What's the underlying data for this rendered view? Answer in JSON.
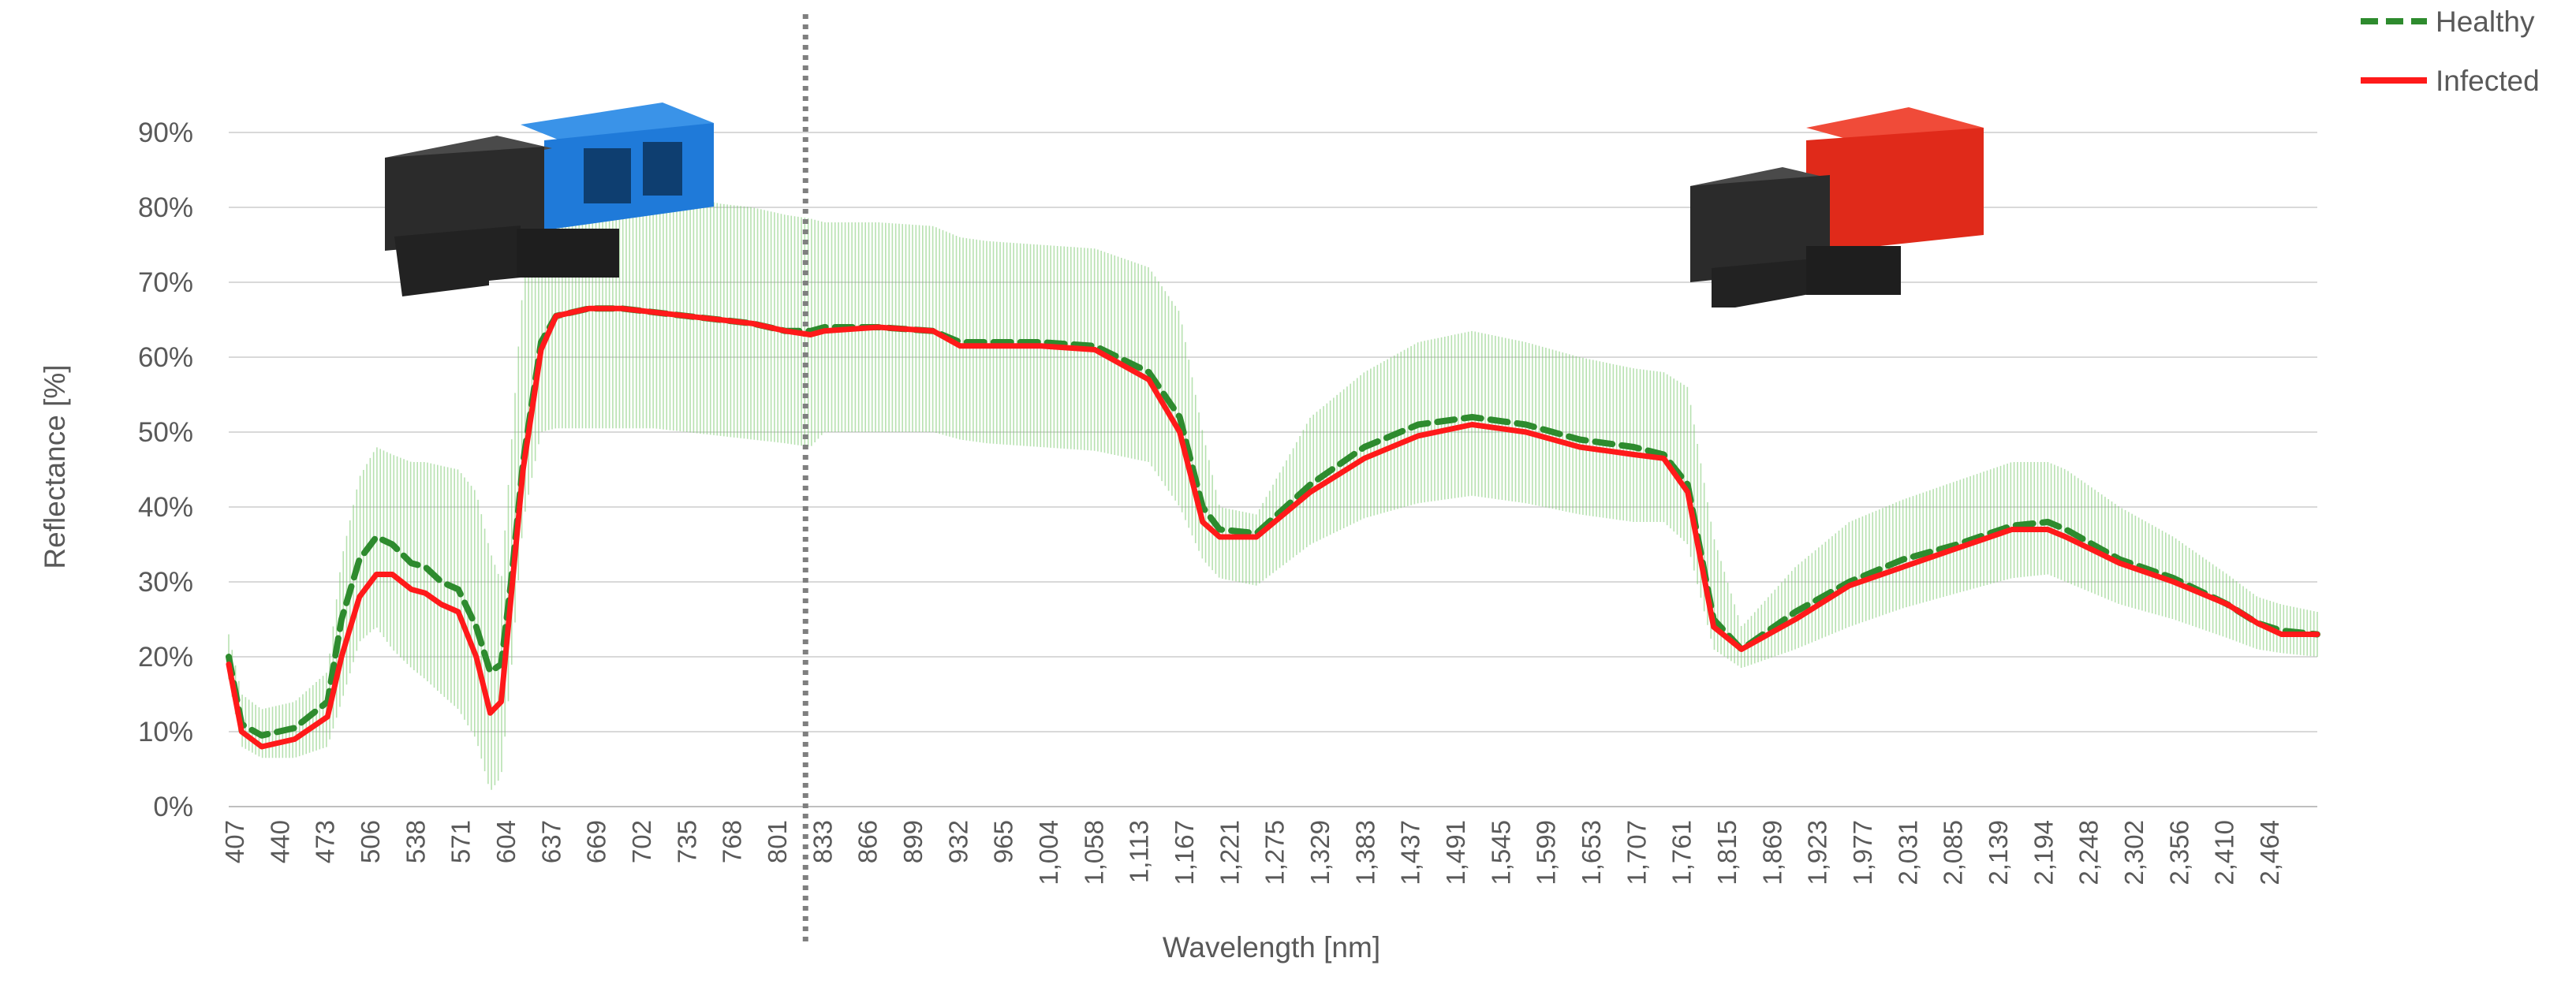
{
  "chart_data": {
    "type": "line",
    "title": "",
    "xlabel": "Wavelength [nm]",
    "ylabel": "Reflectance [%]",
    "x_unit": "nm",
    "xlim": [
      407,
      2500
    ],
    "ylim": [
      0,
      90
    ],
    "y_ticks": [
      "0%",
      "10%",
      "20%",
      "30%",
      "40%",
      "50%",
      "60%",
      "70%",
      "80%",
      "90%"
    ],
    "x_tick_labels": [
      "407",
      "440",
      "473",
      "506",
      "538",
      "571",
      "604",
      "637",
      "669",
      "702",
      "735",
      "768",
      "801",
      "833",
      "866",
      "899",
      "932",
      "965",
      "1,004",
      "1,058",
      "1,113",
      "1,167",
      "1,221",
      "1,275",
      "1,329",
      "1,383",
      "1,437",
      "1,491",
      "1,545",
      "1,599",
      "1,653",
      "1,707",
      "1,761",
      "1,815",
      "1,869",
      "1,923",
      "1,977",
      "2,031",
      "2,085",
      "2,139",
      "2,194",
      "2,248",
      "2,302",
      "2,356",
      "2,410",
      "2,464"
    ],
    "grid": true,
    "legend_position": "top-right",
    "divider_x": 985,
    "series": [
      {
        "name": "Healthy",
        "color": "#2E8B2E",
        "dash": "dashed",
        "x": [
          407,
          420,
          440,
          473,
          506,
          520,
          538,
          555,
          571,
          590,
          604,
          620,
          637,
          655,
          669,
          680,
          690,
          702,
          720,
          735,
          768,
          801,
          833,
          866,
          899,
          932,
          965,
          990,
          1004,
          1058,
          1113,
          1140,
          1167,
          1221,
          1275,
          1329,
          1360,
          1383,
          1400,
          1437,
          1491,
          1545,
          1599,
          1653,
          1707,
          1761,
          1815,
          1845,
          1869,
          1895,
          1923,
          1977,
          2031,
          2085,
          2139,
          2194,
          2230,
          2248,
          2302,
          2356,
          2410,
          2440,
          2464,
          2500
        ],
        "values": [
          20,
          11,
          9.5,
          10.5,
          14,
          25,
          33,
          36,
          35,
          32.5,
          32,
          30,
          29,
          24,
          18,
          19,
          30,
          46,
          62,
          65.5,
          66.5,
          66.5,
          66,
          65.5,
          65,
          64.5,
          63.5,
          63.5,
          64,
          64,
          63.5,
          62,
          62,
          62,
          61.5,
          58,
          52,
          40,
          37,
          36.5,
          43,
          48,
          51,
          52,
          51,
          49,
          48,
          47,
          43,
          25,
          21,
          26,
          30,
          33,
          35,
          37.5,
          38,
          37,
          33,
          30.5,
          27,
          24.5,
          23.5,
          23
        ]
      },
      {
        "name": "Infected",
        "color": "#FF1A1A",
        "dash": "solid",
        "x": [
          407,
          420,
          440,
          473,
          506,
          520,
          538,
          555,
          571,
          590,
          604,
          620,
          637,
          655,
          669,
          680,
          690,
          702,
          720,
          735,
          768,
          801,
          833,
          866,
          899,
          932,
          965,
          990,
          1004,
          1058,
          1113,
          1140,
          1167,
          1221,
          1275,
          1329,
          1360,
          1383,
          1400,
          1437,
          1491,
          1545,
          1599,
          1653,
          1707,
          1761,
          1815,
          1845,
          1869,
          1895,
          1923,
          1977,
          2031,
          2085,
          2139,
          2194,
          2230,
          2248,
          2302,
          2356,
          2410,
          2440,
          2464,
          2500
        ],
        "values": [
          19,
          10,
          8,
          9,
          12,
          20,
          28,
          31,
          31,
          29,
          28.5,
          27,
          26,
          20,
          12.5,
          14,
          28,
          45,
          61,
          65.5,
          66.5,
          66.5,
          66,
          65.5,
          65,
          64.5,
          63.5,
          63,
          63.5,
          64,
          63.5,
          61.5,
          61.5,
          61.5,
          61,
          57,
          50,
          38,
          36,
          36,
          42,
          46.5,
          49.5,
          51,
          50,
          48,
          47,
          46.5,
          42,
          24,
          21,
          25,
          29.5,
          32,
          34.5,
          37,
          37,
          36,
          32.5,
          30,
          27,
          24.5,
          23,
          23
        ]
      }
    ],
    "variability_band": {
      "color": "#7BC96F",
      "x": [
        407,
        420,
        440,
        473,
        506,
        520,
        538,
        555,
        571,
        590,
        604,
        620,
        637,
        655,
        669,
        680,
        690,
        702,
        720,
        735,
        768,
        801,
        833,
        866,
        899,
        932,
        965,
        990,
        1004,
        1058,
        1113,
        1140,
        1167,
        1221,
        1275,
        1329,
        1360,
        1383,
        1400,
        1437,
        1491,
        1545,
        1599,
        1653,
        1707,
        1761,
        1815,
        1845,
        1869,
        1895,
        1923,
        1977,
        2031,
        2085,
        2139,
        2194,
        2230,
        2248,
        2302,
        2356,
        2410,
        2440,
        2464,
        2500
      ],
      "upper": [
        23,
        15,
        13,
        14,
        18,
        33,
        44,
        48,
        47,
        46,
        46,
        45.5,
        45,
        42,
        34,
        30,
        48,
        70,
        80,
        82,
        83,
        82.5,
        82,
        81.5,
        80.5,
        80,
        79,
        78.5,
        78,
        78,
        77.5,
        76,
        75.5,
        75,
        74.5,
        72,
        66,
        50,
        40,
        39,
        52,
        58,
        62,
        63.5,
        62,
        60,
        58.5,
        58,
        56,
        36,
        24,
        32,
        38,
        41,
        43.5,
        46,
        46,
        45,
        40,
        36,
        31,
        28,
        27,
        26
      ],
      "lower": [
        17,
        8,
        6.5,
        6.5,
        8,
        14,
        22,
        24,
        21,
        18.5,
        17,
        15,
        13,
        9,
        2,
        4,
        18,
        38,
        50,
        50.5,
        50.5,
        50.5,
        50.5,
        50,
        49.5,
        49,
        48.5,
        48,
        50,
        50,
        50,
        49,
        48.5,
        48,
        47.5,
        46,
        40,
        33,
        30.5,
        29.5,
        35,
        38.5,
        40.5,
        41.5,
        40.5,
        39,
        38,
        38,
        35,
        21,
        18.5,
        21,
        24,
        26.5,
        28.5,
        30.5,
        31,
        30,
        27,
        25,
        22.5,
        21,
        20.5,
        20
      ]
    }
  },
  "images": {
    "left_camera": {
      "label": "camera-vnir",
      "accent_color": "#1F7AD9",
      "body_color": "#2B2B2B"
    },
    "right_camera": {
      "label": "camera-swir",
      "accent_color": "#E02A1A",
      "body_color": "#2B2B2B"
    }
  },
  "colors": {
    "grid": "#D9D9D9",
    "axis": "#BFBFBF",
    "text": "#595959",
    "divider": "#7F7F7F"
  }
}
